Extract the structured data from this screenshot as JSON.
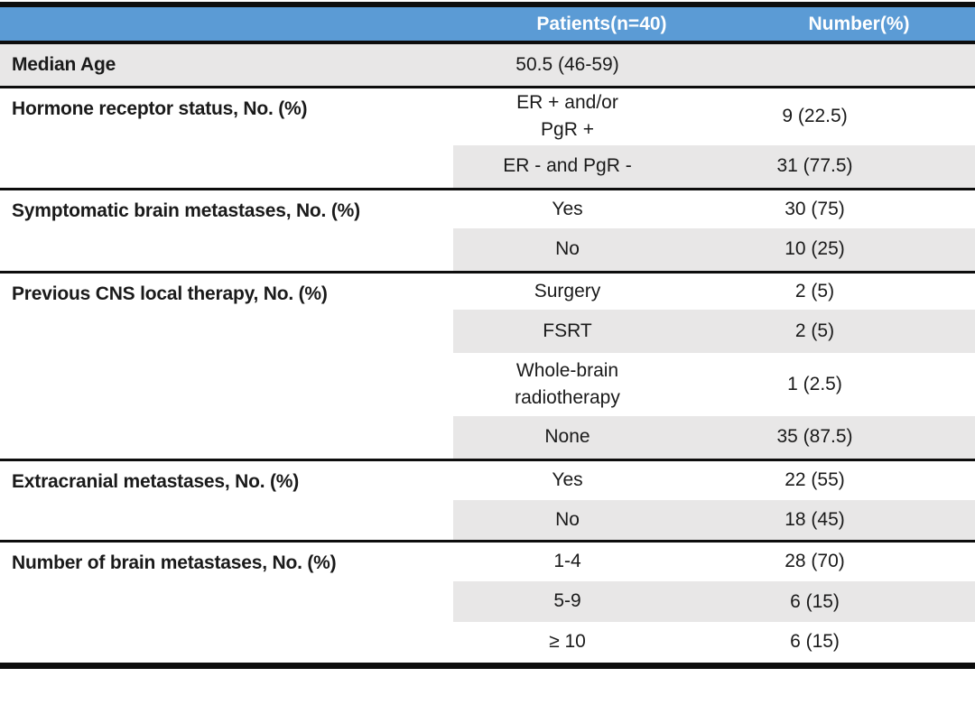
{
  "table": {
    "header": {
      "col1": "",
      "patients": "Patients(n=40)",
      "number": "Number(%)"
    },
    "groups": [
      {
        "label": "Median Age",
        "rows": [
          {
            "value": "50.5 (46-59)",
            "number": ""
          }
        ]
      },
      {
        "label": "Hormone receptor status, No. (%)",
        "rows": [
          {
            "value": "ER + and/or\nPgR +",
            "number": "9 (22.5)"
          },
          {
            "value": "ER - and PgR -",
            "number": "31 (77.5)"
          }
        ]
      },
      {
        "label": "Symptomatic brain metastases, No. (%)",
        "rows": [
          {
            "value": "Yes",
            "number": "30 (75)"
          },
          {
            "value": "No",
            "number": "10 (25)"
          }
        ]
      },
      {
        "label": "Previous CNS local therapy, No. (%)",
        "rows": [
          {
            "value": "Surgery",
            "number": "2 (5)"
          },
          {
            "value": "FSRT",
            "number": "2 (5)"
          },
          {
            "value": "Whole-brain\nradiotherapy",
            "number": "1 (2.5)"
          },
          {
            "value": "None",
            "number": "35 (87.5)"
          }
        ]
      },
      {
        "label": "Extracranial metastases, No. (%)",
        "rows": [
          {
            "value": "Yes",
            "number": "22 (55)"
          },
          {
            "value": "No",
            "number": "18 (45)"
          }
        ]
      },
      {
        "label": "Number of brain metastases, No. (%)",
        "rows": [
          {
            "value": "1-4",
            "number": "28 (70)"
          },
          {
            "value": "5-9",
            "number": "6 (15)"
          },
          {
            "value": "≥ 10",
            "number": "6 (15)"
          }
        ]
      }
    ],
    "colors": {
      "header_bg": "#5B9BD5",
      "header_text": "#FFFFFF",
      "row_shade": "#E8E7E7",
      "border": "#0D0D0D",
      "text": "#1A1A1A"
    }
  }
}
